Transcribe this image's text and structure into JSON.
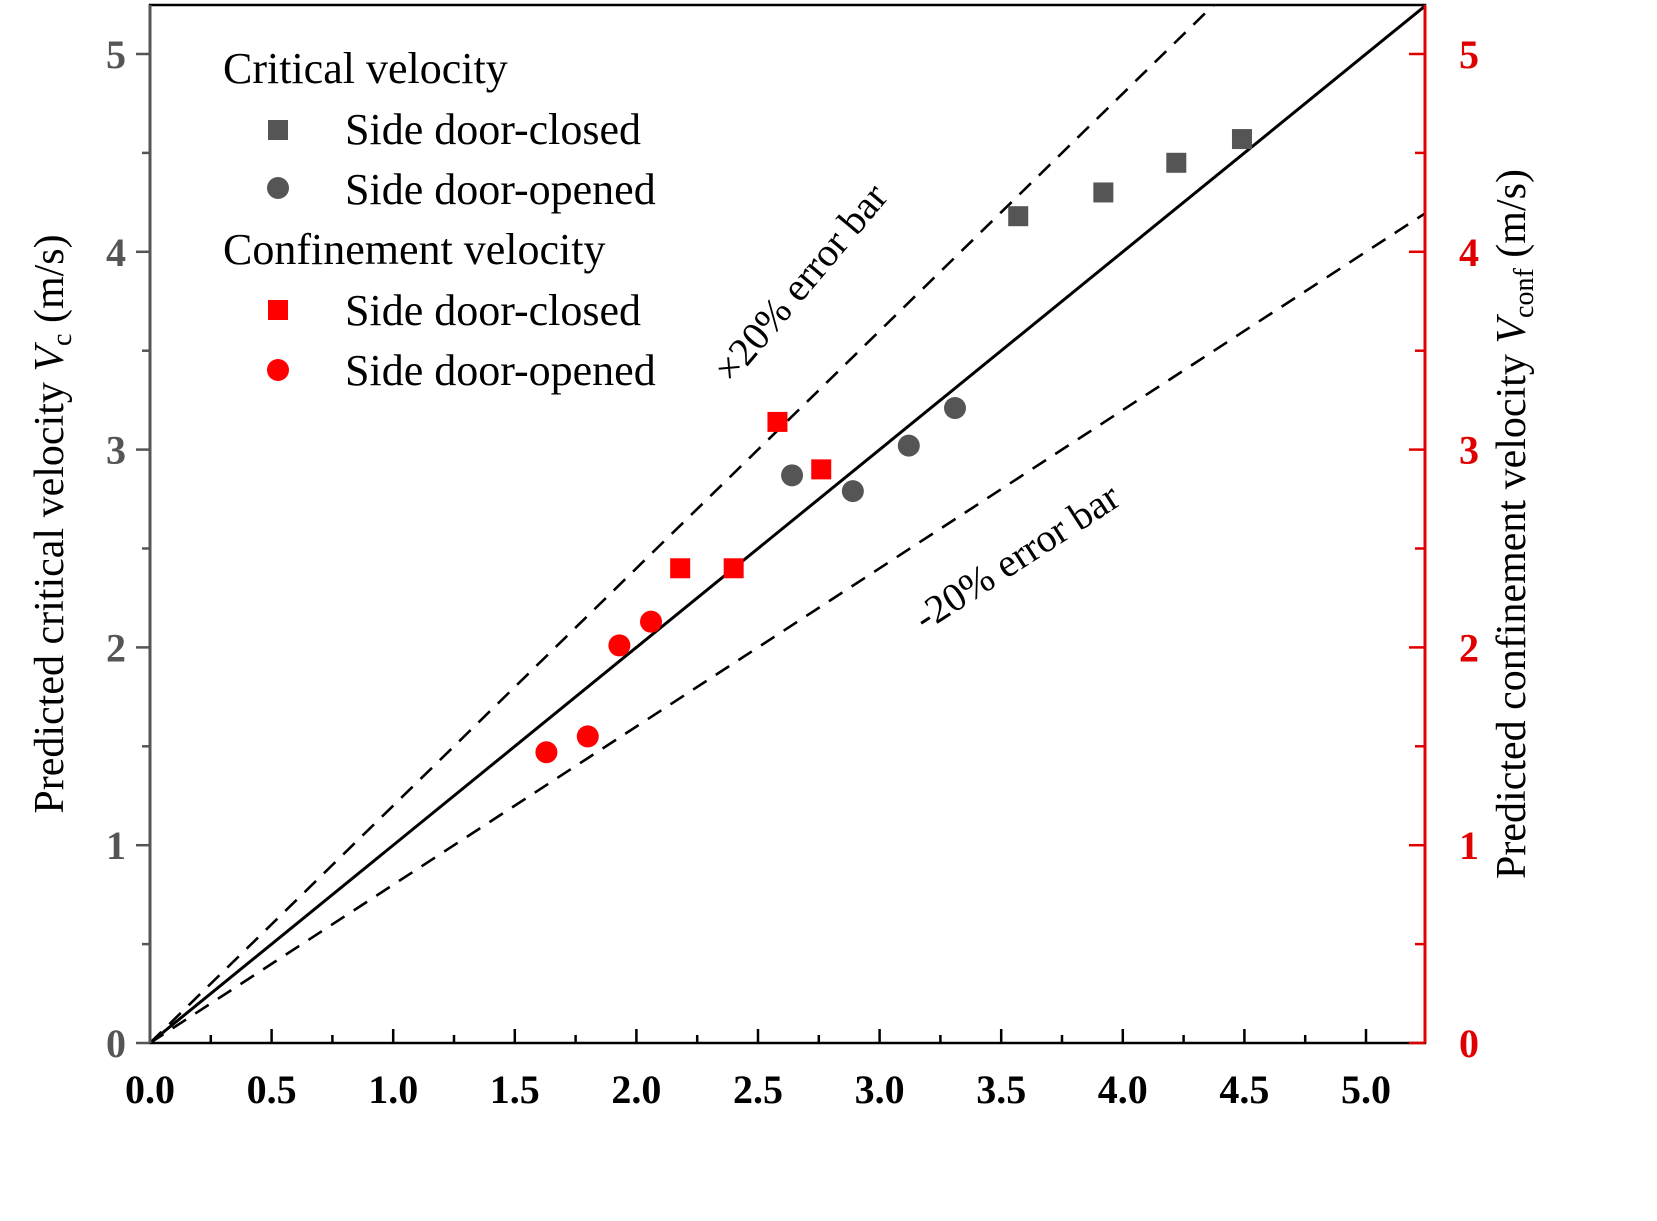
{
  "chart_data": {
    "type": "scatter",
    "x_ticks": [
      "0.0",
      "0.5",
      "1.0",
      "1.5",
      "2.0",
      "2.5",
      "3.0",
      "3.5",
      "4.0",
      "4.5",
      "5.0"
    ],
    "y_ticks": [
      "0",
      "1",
      "2",
      "3",
      "4",
      "5"
    ],
    "y2_ticks": [
      "0",
      "1",
      "2",
      "3",
      "4",
      "5"
    ],
    "xlim": [
      0,
      5.25
    ],
    "ylim": [
      0,
      5.25
    ],
    "y2lim": [
      0,
      5.25
    ],
    "ylabel": {
      "main": "Predicted critical velocity ",
      "var": "V",
      "sub": "c",
      "unit": " (m/s)"
    },
    "y2label": {
      "main": "Predicted confinement velocity ",
      "var": "V",
      "sub": "conf",
      "unit": " (m/s)"
    },
    "legend": {
      "group1_title": "Critical velocity",
      "group2_title": "Confinement velocity",
      "items": [
        {
          "label": "Side door-closed",
          "marker": "square",
          "color": "#555555"
        },
        {
          "label": "Side door-opened",
          "marker": "circle",
          "color": "#555555"
        },
        {
          "label": "Side door-closed",
          "marker": "square",
          "color": "#ff0000"
        },
        {
          "label": "Side door-opened",
          "marker": "circle",
          "color": "#ff0000"
        }
      ]
    },
    "annotations": {
      "upper": "×20% error bar",
      "lower": "-20% error bar"
    },
    "lines": [
      {
        "style": "solid",
        "slope": 1.0
      },
      {
        "style": "dashed",
        "slope": 1.2
      },
      {
        "style": "dashed",
        "slope": 0.8
      }
    ],
    "series": [
      {
        "marker": "square",
        "color": "#555555",
        "points": [
          [
            3.57,
            4.18
          ],
          [
            3.92,
            4.3
          ],
          [
            4.22,
            4.45
          ],
          [
            4.49,
            4.57
          ]
        ]
      },
      {
        "marker": "circle",
        "color": "#555555",
        "points": [
          [
            2.64,
            2.87
          ],
          [
            2.89,
            2.79
          ],
          [
            3.12,
            3.02
          ],
          [
            3.31,
            3.21
          ]
        ]
      },
      {
        "marker": "square",
        "color": "#ff0000",
        "points": [
          [
            2.18,
            2.4
          ],
          [
            2.4,
            2.4
          ],
          [
            2.58,
            3.14
          ],
          [
            2.76,
            2.9
          ]
        ]
      },
      {
        "marker": "circle",
        "color": "#ff0000",
        "points": [
          [
            1.63,
            1.47
          ],
          [
            1.8,
            1.55
          ],
          [
            1.93,
            2.01
          ],
          [
            2.06,
            2.13
          ]
        ]
      }
    ],
    "colors": {
      "left_axis": "#555555",
      "right_axis": "#e00000",
      "plot_frame": "#000000"
    }
  }
}
